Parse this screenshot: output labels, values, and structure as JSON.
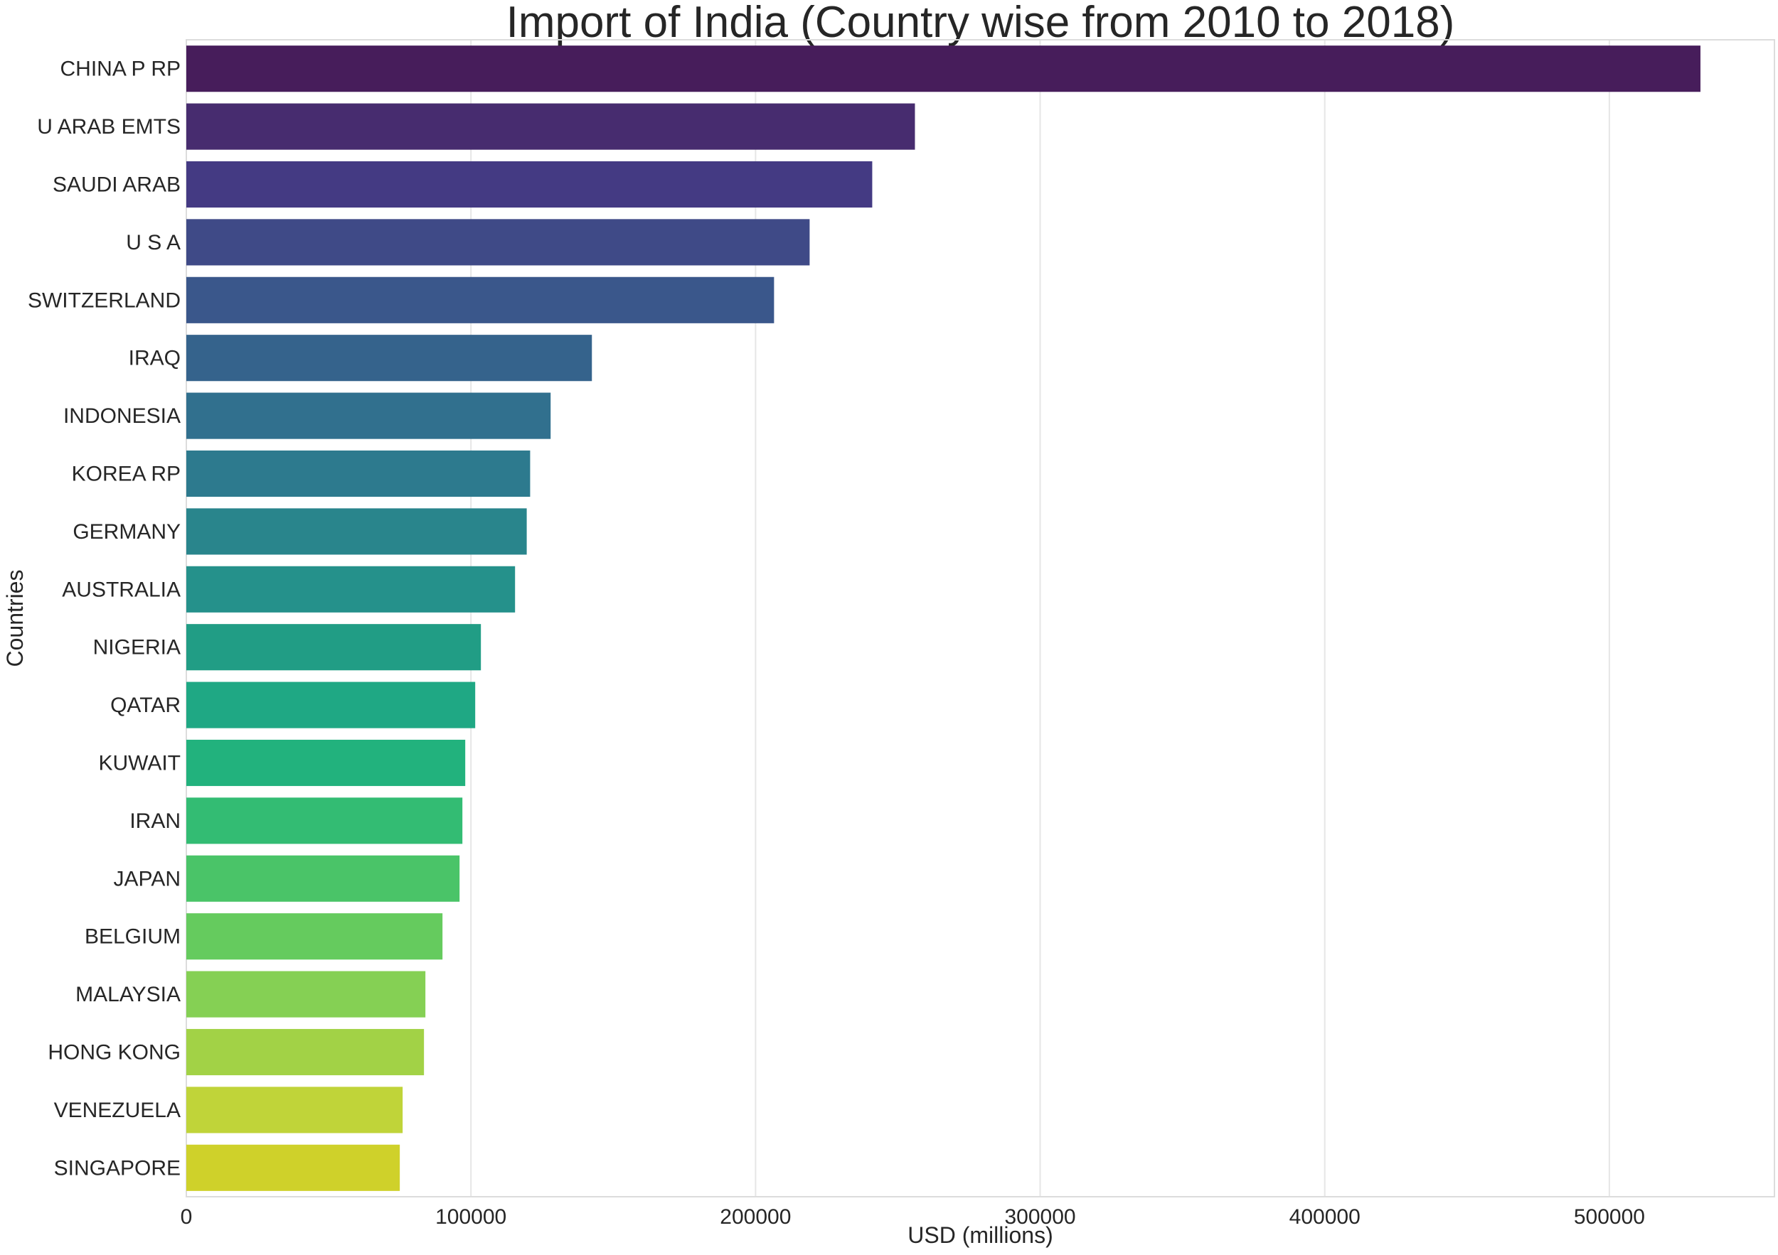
{
  "chart_data": {
    "type": "bar",
    "orientation": "horizontal",
    "title": "Import of India (Country wise from 2010 to 2018)",
    "xlabel": "USD (millions)",
    "ylabel": "Countries",
    "xlim": [
      0,
      558000
    ],
    "xticks": [
      0,
      100000,
      200000,
      300000,
      400000,
      500000
    ],
    "xtick_labels": [
      "0",
      "100000",
      "200000",
      "300000",
      "400000",
      "500000"
    ],
    "grid": "vertical",
    "legend": "none",
    "palette": "viridis",
    "categories": [
      "CHINA P RP",
      "U ARAB EMTS",
      "SAUDI ARAB",
      "U S A",
      "SWITZERLAND",
      "IRAQ",
      "INDONESIA",
      "KOREA RP",
      "GERMANY",
      "AUSTRALIA",
      "NIGERIA",
      "QATAR",
      "KUWAIT",
      "IRAN",
      "JAPAN",
      "BELGIUM",
      "MALAYSIA",
      "HONG KONG",
      "VENEZUELA",
      "SINGAPORE"
    ],
    "values": [
      532000,
      256000,
      241000,
      219000,
      206500,
      142500,
      128000,
      120800,
      119600,
      115500,
      103500,
      101500,
      98000,
      97000,
      96000,
      90000,
      84000,
      83500,
      76000,
      75000
    ],
    "colors": [
      "#471d5b",
      "#472c6f",
      "#443a83",
      "#3f4a87",
      "#3a578b",
      "#35638c",
      "#31708e",
      "#2d7a8e",
      "#29858c",
      "#25918b",
      "#219d85",
      "#1fa884",
      "#22b27d",
      "#33bc73",
      "#4ac468",
      "#65cb5e",
      "#85d054",
      "#a2d246",
      "#c0d439",
      "#cfd12a"
    ]
  }
}
